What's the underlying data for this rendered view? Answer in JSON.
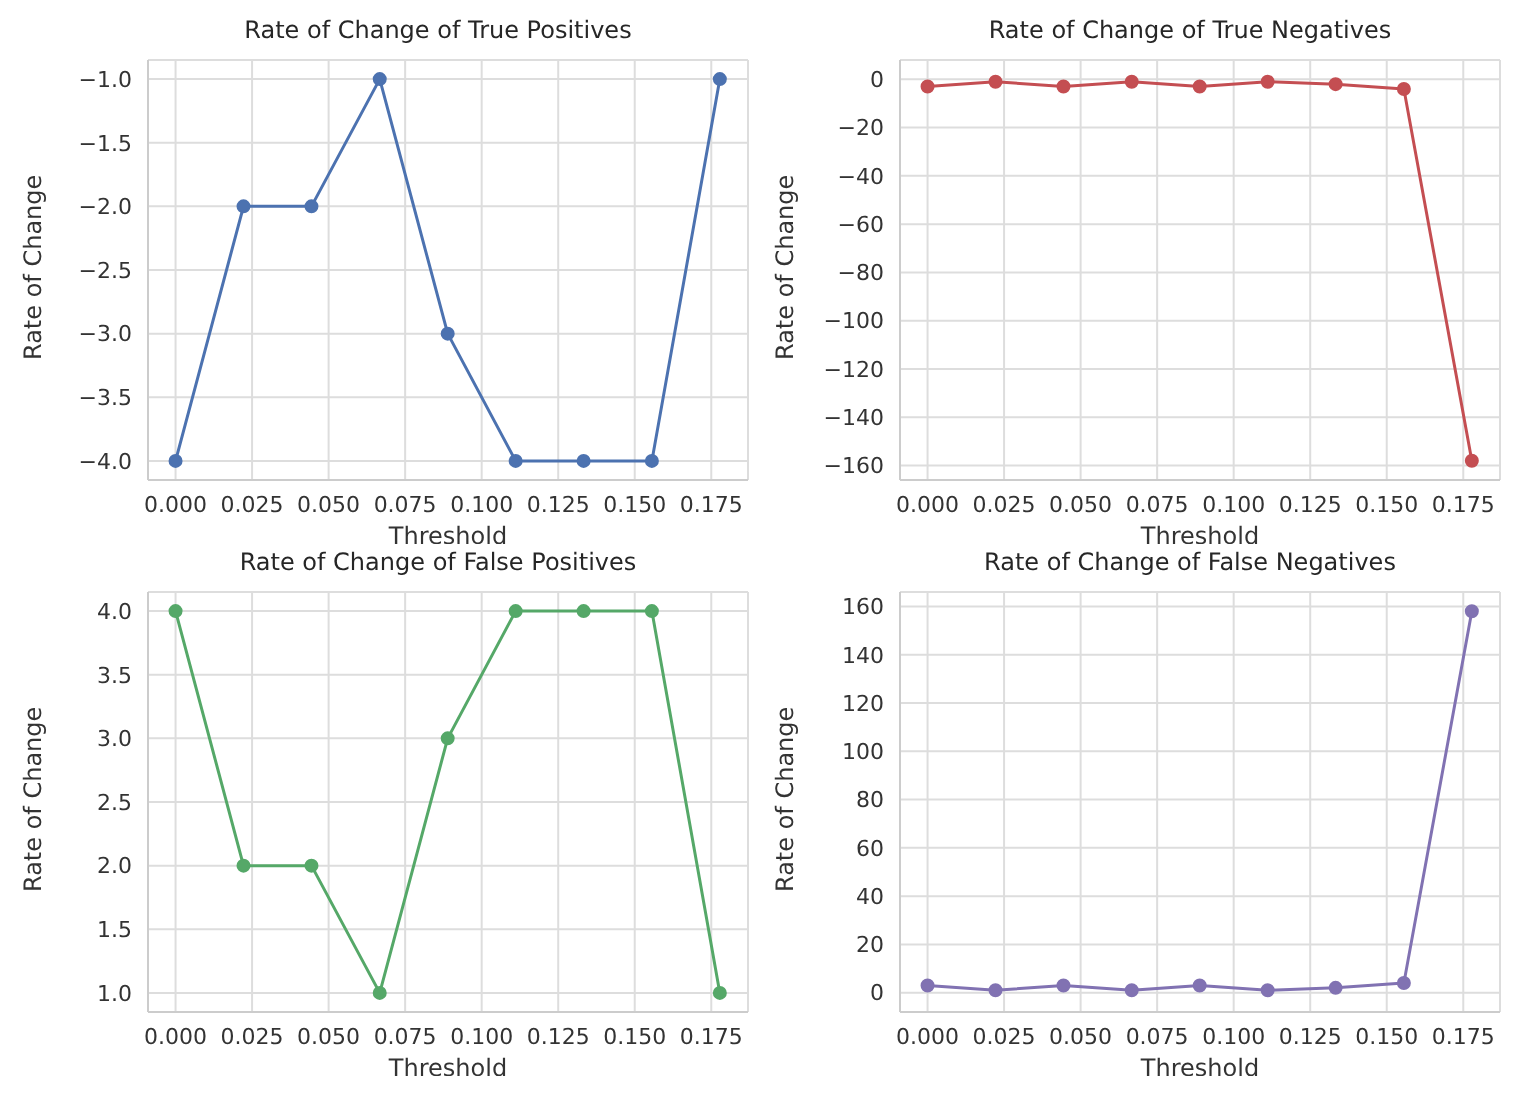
{
  "chart_data": [
    {
      "type": "line",
      "title": "Rate of Change of True Positives",
      "xlabel": "Threshold",
      "ylabel": "Rate of Change",
      "x": [
        0,
        0.0222,
        0.0444,
        0.0667,
        0.0889,
        0.1111,
        0.1333,
        0.1556,
        0.1778
      ],
      "series": [
        {
          "color": "#4c72b0",
          "values": [
            -4,
            -2,
            -2,
            -1,
            -3,
            -4,
            -4,
            -4,
            -1
          ]
        }
      ],
      "xlim": [
        -0.009,
        0.187
      ],
      "xticks": [
        {
          "value": 0,
          "label": "0.000"
        },
        {
          "value": 0.025,
          "label": "0.025"
        },
        {
          "value": 0.05,
          "label": "0.050"
        },
        {
          "value": 0.075,
          "label": "0.075"
        },
        {
          "value": 0.1,
          "label": "0.100"
        },
        {
          "value": 0.125,
          "label": "0.125"
        },
        {
          "value": 0.15,
          "label": "0.150"
        },
        {
          "value": 0.175,
          "label": "0.175"
        }
      ],
      "ylim": [
        -4.15,
        -0.85
      ],
      "yticks": [
        {
          "value": -4,
          "label": "−4.0"
        },
        {
          "value": -3.5,
          "label": "−3.5"
        },
        {
          "value": -3,
          "label": "−3.0"
        },
        {
          "value": -2.5,
          "label": "−2.5"
        },
        {
          "value": -2,
          "label": "−2.0"
        },
        {
          "value": -1.5,
          "label": "−1.5"
        },
        {
          "value": -1,
          "label": "−1.0"
        }
      ],
      "grid": true,
      "marker": "circle"
    },
    {
      "type": "line",
      "title": "Rate of Change of True Negatives",
      "xlabel": "Threshold",
      "ylabel": "Rate of Change",
      "x": [
        0,
        0.0222,
        0.0444,
        0.0667,
        0.0889,
        0.1111,
        0.1333,
        0.1556,
        0.1778
      ],
      "series": [
        {
          "color": "#c44e52",
          "values": [
            -3,
            -1,
            -3,
            -1,
            -3,
            -1,
            -2,
            -4,
            -158
          ]
        }
      ],
      "xlim": [
        -0.009,
        0.187
      ],
      "xticks": [
        {
          "value": 0,
          "label": "0.000"
        },
        {
          "value": 0.025,
          "label": "0.025"
        },
        {
          "value": 0.05,
          "label": "0.050"
        },
        {
          "value": 0.075,
          "label": "0.075"
        },
        {
          "value": 0.1,
          "label": "0.100"
        },
        {
          "value": 0.125,
          "label": "0.125"
        },
        {
          "value": 0.15,
          "label": "0.150"
        },
        {
          "value": 0.175,
          "label": "0.175"
        }
      ],
      "ylim": [
        -166,
        8
      ],
      "yticks": [
        {
          "value": -160,
          "label": "−160"
        },
        {
          "value": -140,
          "label": "−140"
        },
        {
          "value": -120,
          "label": "−120"
        },
        {
          "value": -100,
          "label": "−100"
        },
        {
          "value": -80,
          "label": "−80"
        },
        {
          "value": -60,
          "label": "−60"
        },
        {
          "value": -40,
          "label": "−40"
        },
        {
          "value": -20,
          "label": "−20"
        },
        0
      ],
      "grid": true,
      "marker": "circle"
    },
    {
      "type": "line",
      "title": "Rate of Change of False Positives",
      "xlabel": "Threshold",
      "ylabel": "Rate of Change",
      "x": [
        0,
        0.0222,
        0.0444,
        0.0667,
        0.0889,
        0.1111,
        0.1333,
        0.1556,
        0.1778
      ],
      "series": [
        {
          "color": "#55a868",
          "values": [
            4,
            2,
            2,
            1,
            3,
            4,
            4,
            4,
            1
          ]
        }
      ],
      "xlim": [
        -0.009,
        0.187
      ],
      "xticks": [
        {
          "value": 0,
          "label": "0.000"
        },
        {
          "value": 0.025,
          "label": "0.025"
        },
        {
          "value": 0.05,
          "label": "0.050"
        },
        {
          "value": 0.075,
          "label": "0.075"
        },
        {
          "value": 0.1,
          "label": "0.100"
        },
        {
          "value": 0.125,
          "label": "0.125"
        },
        {
          "value": 0.15,
          "label": "0.150"
        },
        {
          "value": 0.175,
          "label": "0.175"
        }
      ],
      "ylim": [
        0.85,
        4.15
      ],
      "yticks": [
        {
          "value": 1,
          "label": "1.0"
        },
        {
          "value": 1.5,
          "label": "1.5"
        },
        {
          "value": 2,
          "label": "2.0"
        },
        {
          "value": 2.5,
          "label": "2.5"
        },
        {
          "value": 3,
          "label": "3.0"
        },
        {
          "value": 3.5,
          "label": "3.5"
        },
        {
          "value": 4,
          "label": "4.0"
        }
      ],
      "grid": true,
      "marker": "circle"
    },
    {
      "type": "line",
      "title": "Rate of Change of False Negatives",
      "xlabel": "Threshold",
      "ylabel": "Rate of Change",
      "x": [
        0,
        0.0222,
        0.0444,
        0.0667,
        0.0889,
        0.1111,
        0.1333,
        0.1556,
        0.1778
      ],
      "series": [
        {
          "color": "#8172b2",
          "values": [
            3,
            1,
            3,
            1,
            3,
            1,
            2,
            4,
            158
          ]
        }
      ],
      "xlim": [
        -0.009,
        0.187
      ],
      "xticks": [
        {
          "value": 0,
          "label": "0.000"
        },
        {
          "value": 0.025,
          "label": "0.025"
        },
        {
          "value": 0.05,
          "label": "0.050"
        },
        {
          "value": 0.075,
          "label": "0.075"
        },
        {
          "value": 0.1,
          "label": "0.100"
        },
        {
          "value": 0.125,
          "label": "0.125"
        },
        {
          "value": 0.15,
          "label": "0.150"
        },
        {
          "value": 0.175,
          "label": "0.175"
        }
      ],
      "ylim": [
        -8,
        166
      ],
      "yticks": [
        0,
        20,
        40,
        60,
        80,
        100,
        120,
        140,
        160
      ],
      "grid": true,
      "marker": "circle"
    }
  ]
}
